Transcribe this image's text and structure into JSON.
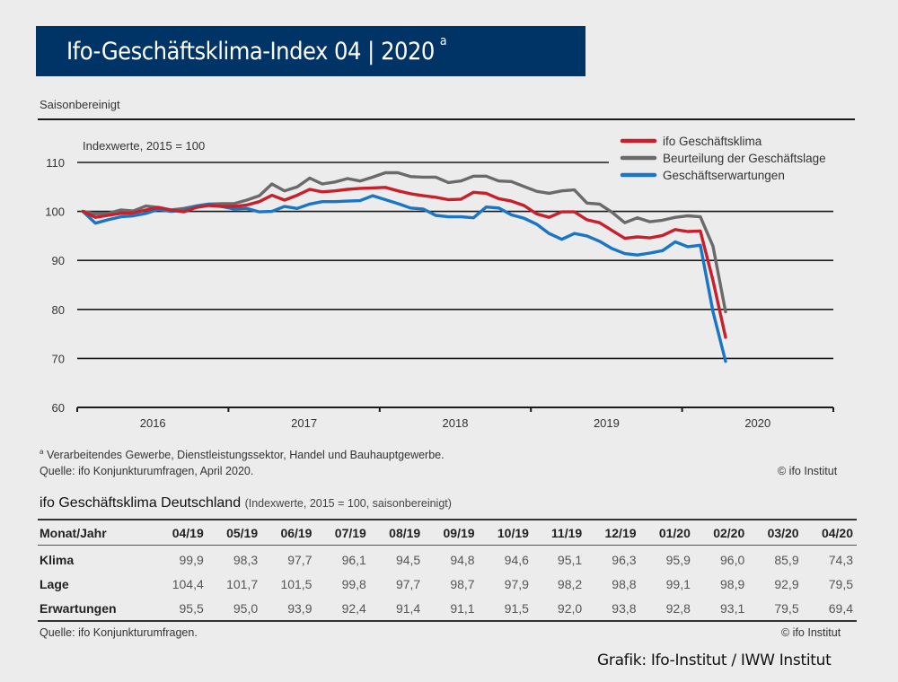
{
  "header": {
    "title": "Ifo-Geschäftsklima-Index 04 | 2020",
    "title_footnote_marker": "a",
    "subtitle": "Saisonbereinigt"
  },
  "chart_data": {
    "type": "line",
    "title": "Ifo-Geschäftsklima-Index 04 | 2020",
    "annotation": "Indexwerte, 2015 = 100",
    "xlabel": "",
    "ylabel": "",
    "ylim": [
      60,
      110
    ],
    "yticks": [
      60,
      70,
      80,
      90,
      100,
      110
    ],
    "ytick_labels": [
      "60",
      "70",
      "80",
      "90",
      "100",
      "110"
    ],
    "x_start": "2016-01",
    "x_end": "2020-12",
    "xtick_labels": [
      "2016",
      "2017",
      "2018",
      "2019",
      "2020"
    ],
    "grid": "horizontal",
    "legend_position": "top-right",
    "colors": {
      "klima": "#c8202b",
      "lage": "#6a6a6a",
      "erwartungen": "#1a75c4"
    },
    "series": [
      {
        "name": "ifo Geschäftsklima",
        "key": "klima",
        "values": [
          100.0,
          98.8,
          99.2,
          99.6,
          99.7,
          100.3,
          100.8,
          100.3,
          99.9,
          100.8,
          101.2,
          101.0,
          101.0,
          101.3,
          102.0,
          103.3,
          102.3,
          103.3,
          104.5,
          104.0,
          104.2,
          104.5,
          104.7,
          104.8,
          104.9,
          104.2,
          103.6,
          103.2,
          102.9,
          102.4,
          102.5,
          103.9,
          103.7,
          102.6,
          102.1,
          101.2,
          99.5,
          98.8,
          99.9,
          99.9,
          98.3,
          97.7,
          96.1,
          94.5,
          94.8,
          94.6,
          95.1,
          96.3,
          95.9,
          96.0,
          85.9,
          74.3
        ]
      },
      {
        "name": "Beurteilung der Geschäftslage",
        "key": "lage",
        "values": [
          100.0,
          99.5,
          99.6,
          100.3,
          100.1,
          101.1,
          100.8,
          100.3,
          100.6,
          101.1,
          101.5,
          101.6,
          101.6,
          102.3,
          103.2,
          105.6,
          104.2,
          105.0,
          106.8,
          105.6,
          106.0,
          106.7,
          106.2,
          107.0,
          107.9,
          107.9,
          107.1,
          107.0,
          107.0,
          105.9,
          106.2,
          107.2,
          107.2,
          106.2,
          106.1,
          105.1,
          104.1,
          103.7,
          104.2,
          104.4,
          101.7,
          101.5,
          99.8,
          97.7,
          98.7,
          97.9,
          98.2,
          98.8,
          99.1,
          98.9,
          92.9,
          79.5
        ]
      },
      {
        "name": "Geschäftserwartungen",
        "key": "erwartungen",
        "values": [
          100.0,
          97.6,
          98.3,
          98.9,
          99.1,
          99.6,
          100.4,
          100.0,
          100.2,
          101.1,
          101.5,
          101.0,
          100.5,
          100.6,
          99.9,
          100.0,
          101.0,
          100.6,
          101.5,
          102.0,
          102.0,
          102.1,
          102.2,
          103.2,
          102.4,
          101.6,
          100.7,
          100.5,
          99.2,
          98.9,
          98.9,
          98.7,
          100.9,
          100.7,
          99.3,
          98.6,
          97.4,
          95.5,
          94.3,
          95.5,
          95.0,
          93.9,
          92.4,
          91.4,
          91.1,
          91.5,
          92.0,
          93.8,
          92.8,
          93.1,
          79.5,
          69.4
        ]
      }
    ]
  },
  "footnotes": {
    "note_a": "Verarbeitendes Gewerbe, Dienstleistungssektor, Handel und Bauhauptgewerbe.",
    "note_a_marker": "a",
    "source_chart": "Quelle: ifo Konjunkturumfragen, April 2020.",
    "copyright_chart": "© ifo Institut"
  },
  "table": {
    "title": "ifo Geschäftsklima Deutschland",
    "subtitle": "(Indexwerte, 2015 = 100, saisonbereinigt)",
    "header_label": "Monat/Jahr",
    "columns": [
      "04/19",
      "05/19",
      "06/19",
      "07/19",
      "08/19",
      "09/19",
      "10/19",
      "11/19",
      "12/19",
      "01/20",
      "02/20",
      "03/20",
      "04/20"
    ],
    "rows": [
      {
        "label": "Klima",
        "values": [
          "99,9",
          "98,3",
          "97,7",
          "96,1",
          "94,5",
          "94,8",
          "94,6",
          "95,1",
          "96,3",
          "95,9",
          "96,0",
          "85,9",
          "74,3"
        ]
      },
      {
        "label": "Lage",
        "values": [
          "104,4",
          "101,7",
          "101,5",
          "99,8",
          "97,7",
          "98,7",
          "97,9",
          "98,2",
          "98,8",
          "99,1",
          "98,9",
          "92,9",
          "79,5"
        ]
      },
      {
        "label": "Erwartungen",
        "values": [
          "95,5",
          "95,0",
          "93,9",
          "92,4",
          "91,4",
          "91,1",
          "91,5",
          "92,0",
          "93,8",
          "92,8",
          "93,1",
          "79,5",
          "69,4"
        ]
      }
    ],
    "source": "Quelle: ifo Konjunkturumfragen.",
    "copyright": "© ifo Institut"
  },
  "credit": "Grafik: Ifo-Institut / IWW Institut"
}
